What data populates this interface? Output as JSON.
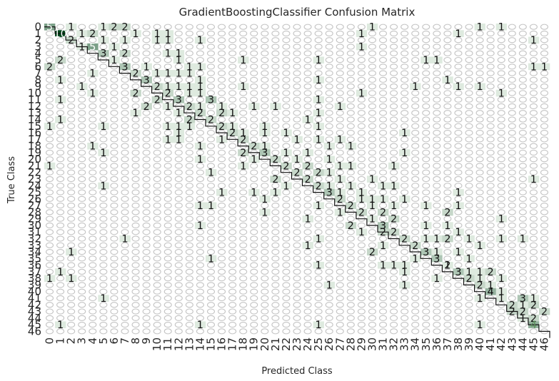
{
  "chart_data": {
    "type": "heatmap",
    "title": "GradientBoostingClassifier Confusion Matrix",
    "xlabel": "Predicted Class",
    "ylabel": "True Class",
    "row_labels": [
      "0",
      "1",
      "2",
      "3",
      "4",
      "5",
      "6",
      "7",
      "8",
      "9",
      "10",
      "11",
      "12",
      "13",
      "14",
      "15",
      "16",
      "17",
      "18",
      "19",
      "20",
      "21",
      "22",
      "23",
      "24",
      "25",
      "26",
      "27",
      "28",
      "29",
      "30",
      "31",
      "32",
      "33",
      "34",
      "35",
      "36",
      "37",
      "38",
      "39",
      "40",
      "41",
      "42",
      "43",
      "44",
      "45",
      "46"
    ],
    "col_labels": [
      "0",
      "1",
      "2",
      "3",
      "4",
      "5",
      "6",
      "7",
      "8",
      "9",
      "10",
      "11",
      "12",
      "13",
      "14",
      "15",
      "16",
      "17",
      "18",
      "19",
      "20",
      "21",
      "22",
      "23",
      "24",
      "25",
      "26",
      "27",
      "28",
      "29",
      "30",
      "31",
      "32",
      "33",
      "34",
      "35",
      "36",
      "37",
      "38",
      "39",
      "40",
      "41",
      "42",
      "43",
      "44",
      "45",
      "46"
    ],
    "cells": [
      [
        0,
        0,
        5
      ],
      [
        0,
        7,
        2
      ],
      [
        0,
        2,
        1
      ],
      [
        0,
        5,
        1
      ],
      [
        0,
        6,
        2
      ],
      [
        0,
        30,
        1
      ],
      [
        0,
        40,
        1
      ],
      [
        0,
        42,
        1
      ],
      [
        1,
        1,
        10
      ],
      [
        1,
        3,
        1
      ],
      [
        1,
        4,
        2
      ],
      [
        1,
        8,
        1
      ],
      [
        1,
        10,
        1
      ],
      [
        1,
        11,
        1
      ],
      [
        1,
        29,
        1
      ],
      [
        1,
        38,
        1
      ],
      [
        2,
        2,
        2
      ],
      [
        2,
        5,
        1
      ],
      [
        2,
        7,
        1
      ],
      [
        2,
        10,
        1
      ],
      [
        2,
        11,
        1
      ],
      [
        2,
        14,
        1
      ],
      [
        2,
        45,
        1
      ],
      [
        3,
        3,
        1
      ],
      [
        3,
        4,
        5
      ],
      [
        3,
        6,
        1
      ],
      [
        3,
        29,
        1
      ],
      [
        4,
        5,
        3
      ],
      [
        4,
        7,
        2
      ],
      [
        4,
        11,
        1
      ],
      [
        4,
        12,
        1
      ],
      [
        5,
        1,
        2
      ],
      [
        5,
        6,
        1
      ],
      [
        5,
        12,
        1
      ],
      [
        5,
        18,
        1
      ],
      [
        5,
        25,
        1
      ],
      [
        5,
        35,
        1
      ],
      [
        5,
        36,
        1
      ],
      [
        6,
        0,
        2
      ],
      [
        6,
        7,
        3
      ],
      [
        6,
        9,
        1
      ],
      [
        6,
        13,
        1
      ],
      [
        6,
        14,
        1
      ],
      [
        6,
        45,
        1
      ],
      [
        6,
        46,
        1
      ],
      [
        7,
        8,
        2
      ],
      [
        7,
        4,
        1
      ],
      [
        7,
        10,
        1
      ],
      [
        7,
        11,
        1
      ],
      [
        7,
        12,
        1
      ],
      [
        7,
        13,
        1
      ],
      [
        8,
        9,
        3
      ],
      [
        8,
        1,
        1
      ],
      [
        8,
        14,
        1
      ],
      [
        8,
        25,
        1
      ],
      [
        8,
        37,
        1
      ],
      [
        9,
        10,
        2
      ],
      [
        9,
        3,
        1
      ],
      [
        9,
        11,
        1
      ],
      [
        9,
        12,
        1
      ],
      [
        9,
        13,
        1
      ],
      [
        9,
        14,
        1
      ],
      [
        9,
        18,
        1
      ],
      [
        9,
        34,
        1
      ],
      [
        9,
        38,
        1
      ],
      [
        9,
        40,
        1
      ],
      [
        10,
        11,
        2
      ],
      [
        10,
        4,
        1
      ],
      [
        10,
        8,
        2
      ],
      [
        10,
        13,
        1
      ],
      [
        10,
        14,
        1
      ],
      [
        10,
        29,
        1
      ],
      [
        10,
        42,
        1
      ],
      [
        11,
        12,
        3
      ],
      [
        11,
        1,
        1
      ],
      [
        11,
        10,
        2
      ],
      [
        11,
        15,
        3
      ],
      [
        11,
        25,
        1
      ],
      [
        12,
        13,
        2
      ],
      [
        12,
        9,
        2
      ],
      [
        12,
        11,
        1
      ],
      [
        12,
        14,
        1
      ],
      [
        12,
        16,
        1
      ],
      [
        12,
        19,
        1
      ],
      [
        12,
        21,
        1
      ],
      [
        12,
        27,
        1
      ],
      [
        13,
        14,
        2
      ],
      [
        13,
        8,
        1
      ],
      [
        13,
        12,
        1
      ],
      [
        13,
        16,
        2
      ],
      [
        13,
        17,
        1
      ],
      [
        13,
        25,
        1
      ],
      [
        14,
        15,
        2
      ],
      [
        14,
        1,
        1
      ],
      [
        14,
        13,
        2
      ],
      [
        14,
        24,
        1
      ],
      [
        15,
        16,
        2
      ],
      [
        15,
        0,
        1
      ],
      [
        15,
        5,
        1
      ],
      [
        15,
        11,
        1
      ],
      [
        15,
        12,
        1
      ],
      [
        15,
        13,
        1
      ],
      [
        15,
        17,
        1
      ],
      [
        15,
        20,
        1
      ],
      [
        15,
        25,
        1
      ],
      [
        16,
        17,
        2
      ],
      [
        16,
        12,
        1
      ],
      [
        16,
        18,
        1
      ],
      [
        16,
        20,
        1
      ],
      [
        16,
        22,
        1
      ],
      [
        16,
        33,
        1
      ],
      [
        17,
        18,
        2
      ],
      [
        17,
        11,
        1
      ],
      [
        17,
        12,
        1
      ],
      [
        17,
        16,
        1
      ],
      [
        17,
        23,
        1
      ],
      [
        17,
        25,
        1
      ],
      [
        17,
        27,
        1
      ],
      [
        18,
        19,
        2
      ],
      [
        18,
        4,
        1
      ],
      [
        18,
        14,
        1
      ],
      [
        18,
        20,
        1
      ],
      [
        18,
        26,
        1
      ],
      [
        18,
        28,
        1
      ],
      [
        19,
        20,
        3
      ],
      [
        19,
        5,
        1
      ],
      [
        19,
        18,
        2
      ],
      [
        19,
        22,
        1
      ],
      [
        19,
        24,
        1
      ],
      [
        19,
        33,
        1
      ],
      [
        20,
        21,
        2
      ],
      [
        20,
        14,
        1
      ],
      [
        20,
        19,
        1
      ],
      [
        20,
        23,
        1
      ],
      [
        20,
        26,
        1
      ],
      [
        21,
        22,
        2
      ],
      [
        21,
        0,
        1
      ],
      [
        21,
        18,
        1
      ],
      [
        21,
        24,
        2
      ],
      [
        21,
        27,
        1
      ],
      [
        21,
        28,
        1
      ],
      [
        21,
        32,
        1
      ],
      [
        22,
        23,
        2
      ],
      [
        22,
        15,
        1
      ],
      [
        22,
        25,
        2
      ],
      [
        22,
        26,
        1
      ],
      [
        23,
        24,
        2
      ],
      [
        23,
        21,
        2
      ],
      [
        23,
        27,
        1
      ],
      [
        23,
        30,
        1
      ],
      [
        23,
        45,
        1
      ],
      [
        24,
        25,
        2
      ],
      [
        24,
        5,
        1
      ],
      [
        24,
        22,
        1
      ],
      [
        24,
        26,
        1
      ],
      [
        24,
        28,
        1
      ],
      [
        24,
        31,
        1
      ],
      [
        24,
        32,
        1
      ],
      [
        25,
        26,
        3
      ],
      [
        25,
        16,
        1
      ],
      [
        25,
        19,
        1
      ],
      [
        25,
        21,
        1
      ],
      [
        25,
        27,
        1
      ],
      [
        25,
        29,
        1
      ],
      [
        25,
        38,
        1
      ],
      [
        26,
        27,
        2
      ],
      [
        26,
        20,
        1
      ],
      [
        26,
        29,
        1
      ],
      [
        26,
        30,
        1
      ],
      [
        26,
        31,
        1
      ],
      [
        26,
        33,
        1
      ],
      [
        27,
        28,
        2
      ],
      [
        27,
        14,
        1
      ],
      [
        27,
        15,
        1
      ],
      [
        27,
        25,
        1
      ],
      [
        27,
        30,
        1
      ],
      [
        27,
        32,
        1
      ],
      [
        27,
        35,
        1
      ],
      [
        27,
        38,
        1
      ],
      [
        28,
        29,
        2
      ],
      [
        28,
        20,
        1
      ],
      [
        28,
        27,
        1
      ],
      [
        28,
        31,
        2
      ],
      [
        28,
        37,
        2
      ],
      [
        29,
        30,
        1
      ],
      [
        29,
        24,
        1
      ],
      [
        29,
        32,
        2
      ],
      [
        29,
        42,
        1
      ],
      [
        30,
        31,
        3
      ],
      [
        30,
        14,
        1
      ],
      [
        30,
        28,
        2
      ],
      [
        30,
        35,
        1
      ],
      [
        30,
        37,
        1
      ],
      [
        31,
        32,
        2
      ],
      [
        31,
        31,
        2
      ],
      [
        31,
        29,
        1
      ],
      [
        31,
        38,
        1
      ],
      [
        32,
        33,
        2
      ],
      [
        32,
        7,
        1
      ],
      [
        32,
        25,
        1
      ],
      [
        32,
        35,
        1
      ],
      [
        32,
        36,
        1
      ],
      [
        32,
        37,
        2
      ],
      [
        32,
        39,
        1
      ],
      [
        32,
        42,
        1
      ],
      [
        32,
        44,
        1
      ],
      [
        33,
        34,
        2
      ],
      [
        33,
        24,
        1
      ],
      [
        33,
        31,
        1
      ],
      [
        33,
        40,
        1
      ],
      [
        34,
        35,
        3
      ],
      [
        34,
        2,
        1
      ],
      [
        34,
        30,
        2
      ],
      [
        34,
        36,
        1
      ],
      [
        34,
        38,
        1
      ],
      [
        35,
        36,
        3
      ],
      [
        35,
        15,
        1
      ],
      [
        35,
        34,
        1
      ],
      [
        35,
        39,
        1
      ],
      [
        36,
        37,
        2
      ],
      [
        36,
        25,
        1
      ],
      [
        36,
        31,
        1
      ],
      [
        36,
        32,
        1
      ],
      [
        36,
        33,
        1
      ],
      [
        36,
        37,
        1
      ],
      [
        37,
        38,
        3
      ],
      [
        37,
        1,
        1
      ],
      [
        37,
        33,
        1
      ],
      [
        37,
        39,
        1
      ],
      [
        37,
        40,
        1
      ],
      [
        37,
        41,
        2
      ],
      [
        38,
        39,
        2
      ],
      [
        38,
        0,
        1
      ],
      [
        38,
        2,
        1
      ],
      [
        38,
        36,
        1
      ],
      [
        38,
        40,
        1
      ],
      [
        38,
        42,
        1
      ],
      [
        39,
        40,
        2
      ],
      [
        39,
        26,
        1
      ],
      [
        39,
        33,
        1
      ],
      [
        39,
        41,
        1
      ],
      [
        40,
        41,
        4
      ],
      [
        40,
        42,
        1
      ],
      [
        41,
        42,
        1
      ],
      [
        41,
        5,
        1
      ],
      [
        41,
        40,
        1
      ],
      [
        41,
        44,
        3
      ],
      [
        41,
        45,
        1
      ],
      [
        42,
        43,
        2
      ],
      [
        42,
        44,
        1
      ],
      [
        42,
        45,
        2
      ],
      [
        43,
        44,
        2
      ],
      [
        43,
        43,
        2
      ],
      [
        43,
        46,
        2
      ],
      [
        44,
        45,
        2
      ],
      [
        44,
        44,
        1
      ],
      [
        45,
        45,
        4
      ],
      [
        45,
        1,
        1
      ],
      [
        45,
        14,
        1
      ],
      [
        45,
        25,
        1
      ],
      [
        45,
        40,
        1
      ]
    ],
    "cmap_max": 10
  }
}
